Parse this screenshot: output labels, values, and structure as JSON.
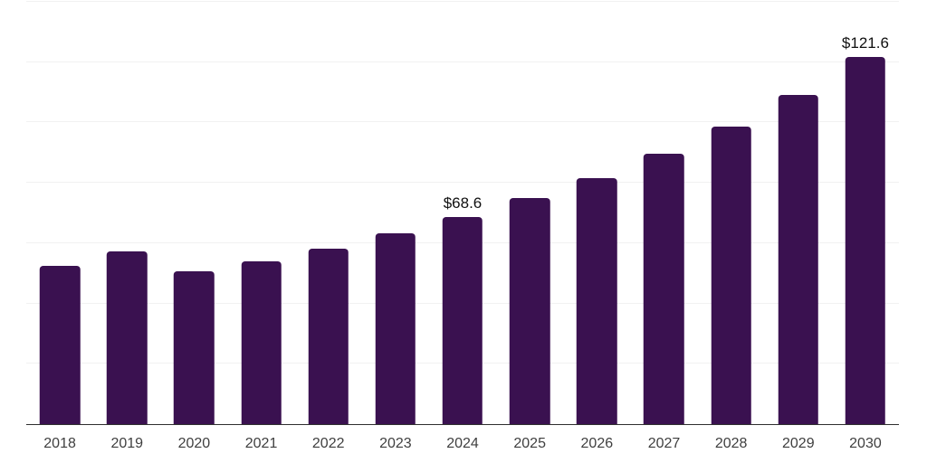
{
  "page": {
    "background": "#ffffff"
  },
  "chart_data": {
    "type": "bar",
    "categories": [
      "2018",
      "2019",
      "2020",
      "2021",
      "2022",
      "2023",
      "2024",
      "2025",
      "2026",
      "2027",
      "2028",
      "2029",
      "2030"
    ],
    "values": [
      52.5,
      57.3,
      50.6,
      53.9,
      58.2,
      63.2,
      68.6,
      74.9,
      81.6,
      89.7,
      98.6,
      109.2,
      121.6
    ],
    "data_labels": [
      {
        "index": 6,
        "text": "$68.6"
      },
      {
        "index": 12,
        "text": "$121.6"
      }
    ],
    "ylim": [
      0,
      140
    ],
    "gridline_values": [
      20,
      40,
      60,
      80,
      100,
      120,
      140
    ],
    "grid": "horizontal",
    "legend": "none",
    "bar_color": "#3a1150",
    "gridline_color": "#f1f1f1",
    "axis_line_color": "#2f2f2f",
    "tick_label_color": "#3f3f3f",
    "value_label_color": "#101010"
  }
}
